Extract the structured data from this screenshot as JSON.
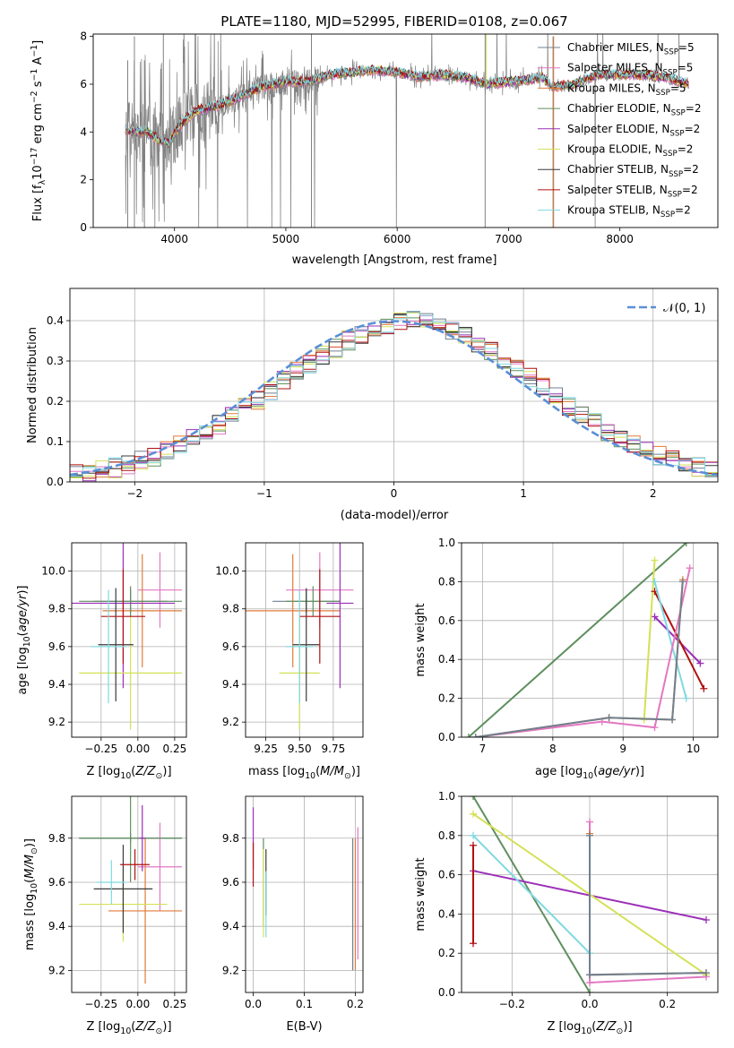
{
  "figure_title": "PLATE=1180, MJD=52995, FIBERID=0108, z=0.067",
  "colors": {
    "Chabrier MILES": "#708090",
    "Salpeter MILES": "#e377c2",
    "Kroupa MILES": "#e07b39",
    "Chabrier ELODIE": "#5f8f5f",
    "Salpeter ELODIE": "#9b30b8",
    "Kroupa ELODIE": "#d4e157",
    "Chabrier STELIB": "#3a3a3a",
    "Salpeter STELIB": "#b01010",
    "Kroupa STELIB": "#80d8e0",
    "data": "#808080",
    "normal": "#5a8fd6"
  },
  "chart_data": [
    {
      "id": "spectrum",
      "type": "line",
      "title": "PLATE=1180, MJD=52995, FIBERID=0108, z=0.067",
      "xlabel": "wavelength [Angstrom, rest frame]",
      "ylabel": "Flux [fλ10⁻¹⁷ erg cm⁻² s⁻¹ A⁻¹]",
      "xlim": [
        3270,
        8880
      ],
      "ylim": [
        0,
        8.1
      ],
      "xticks": [
        4000,
        5000,
        6000,
        7000,
        8000
      ],
      "yticks": [
        0,
        2,
        4,
        6,
        8
      ],
      "grid": false,
      "legend_position": "right",
      "legend": [
        "Chabrier MILES, N_SSP=5",
        "Salpeter MILES, N_SSP=5",
        "Kroupa MILES, N_SSP=5",
        "Chabrier ELODIE, N_SSP=2",
        "Salpeter ELODIE, N_SSP=2",
        "Kroupa ELODIE, N_SSP=2",
        "Chabrier STELIB, N_SSP=2",
        "Salpeter STELIB, N_SSP=2",
        "Kroupa STELIB, N_SSP=2"
      ],
      "legend_main": [
        "Chabrier MILES, N",
        "Salpeter MILES, N",
        "Kroupa MILES, N",
        "Chabrier ELODIE, N",
        "Salpeter ELODIE, N",
        "Kroupa ELODIE, N",
        "Chabrier STELIB, N",
        "Salpeter STELIB, N",
        "Kroupa STELIB, N"
      ],
      "legend_sub": "SSP",
      "legend_tail": [
        "=5",
        "=5",
        "=5",
        "=2",
        "=2",
        "=2",
        "=2",
        "=2",
        "=2"
      ],
      "model_continuum": {
        "x": [
          3560,
          3650,
          3750,
          3850,
          3950,
          4050,
          4200,
          4400,
          4600,
          4800,
          5000,
          5200,
          5400,
          5600,
          5800,
          6000,
          6200,
          6400,
          6600,
          6800,
          7000,
          7200,
          7300,
          7400,
          7600,
          7800,
          8000,
          8200,
          8400,
          8620
        ],
        "y": [
          4.1,
          4.0,
          4.0,
          3.7,
          3.5,
          4.3,
          4.9,
          5.1,
          5.5,
          5.9,
          6.1,
          6.1,
          6.4,
          6.5,
          6.6,
          6.5,
          6.3,
          6.4,
          6.3,
          6.0,
          6.1,
          6.2,
          6.3,
          5.9,
          6.0,
          6.4,
          6.4,
          6.4,
          6.3,
          6.0
        ]
      }
    },
    {
      "id": "residuals",
      "type": "histogram",
      "xlabel": "(data-model)/error",
      "ylabel": "Normed distribution",
      "xlim": [
        -2.5,
        2.5
      ],
      "ylim": [
        0,
        0.48
      ],
      "xticks": [
        -2,
        -1,
        0,
        1,
        2
      ],
      "yticks": [
        0.0,
        0.1,
        0.2,
        0.3,
        0.4
      ],
      "grid": true,
      "legend_position": "top-right",
      "legend": [
        "𝒩(0, 1)"
      ],
      "bin_edges": [
        -2.5,
        -2.4,
        -2.3,
        -2.2,
        -2.1,
        -2.0,
        -1.9,
        -1.8,
        -1.7,
        -1.6,
        -1.5,
        -1.4,
        -1.3,
        -1.2,
        -1.1,
        -1.0,
        -0.9,
        -0.8,
        -0.7,
        -0.6,
        -0.5,
        -0.4,
        -0.3,
        -0.2,
        -0.1,
        0.0,
        0.1,
        0.2,
        0.3,
        0.4,
        0.5,
        0.6,
        0.7,
        0.8,
        0.9,
        1.0,
        1.1,
        1.2,
        1.3,
        1.4,
        1.5,
        1.6,
        1.7,
        1.8,
        1.9,
        2.0,
        2.1,
        2.2,
        2.3,
        2.4,
        2.5
      ],
      "base_density": [
        0.018,
        0.022,
        0.028,
        0.035,
        0.043,
        0.053,
        0.064,
        0.077,
        0.091,
        0.107,
        0.124,
        0.143,
        0.163,
        0.183,
        0.205,
        0.227,
        0.249,
        0.272,
        0.293,
        0.314,
        0.333,
        0.351,
        0.367,
        0.38,
        0.391,
        0.398,
        0.399,
        0.396,
        0.389,
        0.378,
        0.363,
        0.345,
        0.326,
        0.305,
        0.283,
        0.26,
        0.236,
        0.213,
        0.19,
        0.168,
        0.147,
        0.127,
        0.108,
        0.092,
        0.077,
        0.064,
        0.053,
        0.043,
        0.035,
        0.028
      ],
      "normal_curve": {
        "mean": 0,
        "std": 1
      }
    },
    {
      "id": "age-vs-Z",
      "type": "scatter",
      "xlabel": "Z [log10(Z/Z⊙)]",
      "ylabel": "age [log10(age/yr)]",
      "xlim": [
        -0.45,
        0.33
      ],
      "ylim": [
        9.12,
        10.15
      ],
      "xticks": [
        -0.25,
        0.0,
        0.25
      ],
      "yticks": [
        9.2,
        9.4,
        9.6,
        9.8,
        10.0
      ],
      "grid": true,
      "points": [
        {
          "model": "Chabrier MILES",
          "x": -0.05,
          "xerr": 0.25,
          "y": 9.84,
          "yerr": 0.06
        },
        {
          "model": "Salpeter MILES",
          "x": 0.15,
          "xerr": 0.15,
          "y": 9.9,
          "yerr": 0.2
        },
        {
          "model": "Kroupa MILES",
          "x": 0.03,
          "xerr": 0.27,
          "y": 9.79,
          "yerr": 0.3
        },
        {
          "model": "Chabrier ELODIE",
          "x": -0.05,
          "xerr": 0.35,
          "y": 9.84,
          "yerr": 0.08
        },
        {
          "model": "Salpeter ELODIE",
          "x": -0.1,
          "xerr": 0.35,
          "y": 9.83,
          "yerr": 0.45
        },
        {
          "model": "Kroupa ELODIE",
          "x": -0.05,
          "xerr": 0.35,
          "y": 9.46,
          "yerr": 0.3
        },
        {
          "model": "Chabrier STELIB",
          "x": -0.15,
          "xerr": 0.12,
          "y": 9.61,
          "yerr": 0.3
        },
        {
          "model": "Salpeter STELIB",
          "x": -0.1,
          "xerr": 0.15,
          "y": 9.76,
          "yerr": 0.25
        },
        {
          "model": "Kroupa STELIB",
          "x": -0.2,
          "xerr": 0.12,
          "y": 9.6,
          "yerr": 0.3
        }
      ]
    },
    {
      "id": "age-vs-mass",
      "type": "scatter",
      "xlabel": "mass [log10(M/M⊙)]",
      "ylabel": "",
      "xlim": [
        9.1,
        9.97
      ],
      "ylim": [
        9.12,
        10.15
      ],
      "xticks": [
        9.25,
        9.5,
        9.75
      ],
      "yticks": [
        9.2,
        9.4,
        9.6,
        9.8,
        10.0
      ],
      "grid": true,
      "points": [
        {
          "model": "Chabrier MILES",
          "x": 9.55,
          "xerr": 0.25,
          "y": 9.84,
          "yerr": 0.06
        },
        {
          "model": "Salpeter MILES",
          "x": 9.65,
          "xerr": 0.25,
          "y": 9.9,
          "yerr": 0.2
        },
        {
          "model": "Kroupa MILES",
          "x": 9.45,
          "xerr": 0.35,
          "y": 9.79,
          "yerr": 0.3
        },
        {
          "model": "Chabrier ELODIE",
          "x": 9.6,
          "xerr": 0.2,
          "y": 9.84,
          "yerr": 0.08
        },
        {
          "model": "Salpeter ELODIE",
          "x": 9.8,
          "xerr": 0.1,
          "y": 9.83,
          "yerr": 0.45
        },
        {
          "model": "Kroupa ELODIE",
          "x": 9.5,
          "xerr": 0.15,
          "y": 9.46,
          "yerr": 0.3
        },
        {
          "model": "Chabrier STELIB",
          "x": 9.55,
          "xerr": 0.1,
          "y": 9.61,
          "yerr": 0.3
        },
        {
          "model": "Salpeter STELIB",
          "x": 9.65,
          "xerr": 0.15,
          "y": 9.76,
          "yerr": 0.25
        },
        {
          "model": "Kroupa STELIB",
          "x": 9.5,
          "xerr": 0.1,
          "y": 9.6,
          "yerr": 0.3
        }
      ]
    },
    {
      "id": "mass-weight-vs-age",
      "type": "line",
      "xlabel": "age [log10(age/yr)]",
      "ylabel": "mass weight",
      "xlim": [
        6.7,
        10.35
      ],
      "ylim": [
        0,
        1
      ],
      "xticks": [
        7,
        8,
        9,
        10
      ],
      "yticks": [
        0.0,
        0.2,
        0.4,
        0.6,
        0.8,
        1.0
      ],
      "grid": true,
      "series": [
        {
          "model": "Chabrier ELODIE",
          "x": [
            6.8,
            9.9
          ],
          "y": [
            0.0,
            1.0
          ]
        },
        {
          "model": "Salpeter ELODIE",
          "x": [
            9.45,
            10.1
          ],
          "y": [
            0.62,
            0.38
          ]
        },
        {
          "model": "Kroupa ELODIE",
          "x": [
            9.3,
            9.45
          ],
          "y": [
            0.09,
            0.91
          ]
        },
        {
          "model": "Salpeter STELIB",
          "x": [
            9.45,
            10.15
          ],
          "y": [
            0.75,
            0.25
          ]
        },
        {
          "model": "Kroupa STELIB",
          "x": [
            9.45,
            9.9
          ],
          "y": [
            0.8,
            0.2
          ]
        },
        {
          "model": "Salpeter MILES",
          "x": [
            6.9,
            8.7,
            9.45,
            9.95
          ],
          "y": [
            0.0,
            0.08,
            0.05,
            0.87
          ]
        },
        {
          "model": "Kroupa MILES",
          "x": [
            6.9,
            8.8,
            9.7,
            9.85
          ],
          "y": [
            0.0,
            0.1,
            0.09,
            0.81
          ]
        },
        {
          "model": "Chabrier MILES",
          "x": [
            6.9,
            8.8,
            9.7,
            9.85
          ],
          "y": [
            0.0,
            0.1,
            0.09,
            0.8
          ]
        }
      ]
    },
    {
      "id": "mass-vs-Z",
      "type": "scatter",
      "xlabel": "Z [log10(Z/Z⊙)]",
      "ylabel": "mass [log10(M/M⊙)]",
      "xlim": [
        -0.45,
        0.33
      ],
      "ylim": [
        9.1,
        9.99
      ],
      "xticks": [
        -0.25,
        0.0,
        0.25
      ],
      "yticks": [
        9.2,
        9.4,
        9.6,
        9.8
      ],
      "grid": true,
      "points": [
        {
          "model": "Chabrier MILES",
          "x": -0.05,
          "xerr": 0.35,
          "y": 9.8,
          "yerr": 0.02
        },
        {
          "model": "Salpeter MILES",
          "x": 0.15,
          "xerr": 0.15,
          "y": 9.67,
          "yerr": 0.2
        },
        {
          "model": "Kroupa MILES",
          "x": 0.05,
          "xerr": 0.25,
          "y": 9.47,
          "yerr": 0.33
        },
        {
          "model": "Chabrier ELODIE",
          "x": -0.05,
          "xerr": 0.35,
          "y": 9.8,
          "yerr": 0.2
        },
        {
          "model": "Salpeter ELODIE",
          "x": 0.03,
          "xerr": 0.02,
          "y": 9.8,
          "yerr": 0.15
        },
        {
          "model": "Kroupa ELODIE",
          "x": -0.1,
          "xerr": 0.3,
          "y": 9.5,
          "yerr": 0.17
        },
        {
          "model": "Chabrier STELIB",
          "x": -0.1,
          "xerr": 0.2,
          "y": 9.57,
          "yerr": 0.2
        },
        {
          "model": "Salpeter STELIB",
          "x": -0.02,
          "xerr": 0.1,
          "y": 9.68,
          "yerr": 0.07
        },
        {
          "model": "Kroupa STELIB",
          "x": -0.18,
          "xerr": 0.1,
          "y": 9.6,
          "yerr": 0.1
        }
      ]
    },
    {
      "id": "mass-vs-ebv",
      "type": "scatter",
      "xlabel": "E(B-V)",
      "ylabel": "",
      "xlim": [
        -0.015,
        0.215
      ],
      "ylim": [
        9.1,
        9.99
      ],
      "xticks": [
        0.0,
        0.1,
        0.2
      ],
      "yticks": [
        9.2,
        9.4,
        9.6,
        9.8
      ],
      "grid": true,
      "points": [
        {
          "model": "Chabrier MILES",
          "x": 0.195,
          "xerr": 0.0,
          "y": 9.5,
          "yerr": 0.3
        },
        {
          "model": "Salpeter MILES",
          "x": 0.205,
          "xerr": 0.0,
          "y": 9.55,
          "yerr": 0.3
        },
        {
          "model": "Kroupa MILES",
          "x": 0.2,
          "xerr": 0.0,
          "y": 9.5,
          "yerr": 0.3
        },
        {
          "model": "Chabrier ELODIE",
          "x": 0.02,
          "xerr": 0.0,
          "y": 9.6,
          "yerr": 0.2
        },
        {
          "model": "Salpeter ELODIE",
          "x": 0.0,
          "xerr": 0.0,
          "y": 9.8,
          "yerr": 0.14
        },
        {
          "model": "Kroupa ELODIE",
          "x": 0.02,
          "xerr": 0.0,
          "y": 9.55,
          "yerr": 0.2
        },
        {
          "model": "Chabrier STELIB",
          "x": 0.025,
          "xerr": 0.0,
          "y": 9.6,
          "yerr": 0.15
        },
        {
          "model": "Salpeter STELIB",
          "x": 0.0,
          "xerr": 0.0,
          "y": 9.68,
          "yerr": 0.1
        },
        {
          "model": "Kroupa STELIB",
          "x": 0.025,
          "xerr": 0.0,
          "y": 9.5,
          "yerr": 0.15
        }
      ]
    },
    {
      "id": "mass-weight-vs-Z",
      "type": "line",
      "xlabel": "Z [log10(Z/Z⊙)]",
      "ylabel": "mass weight",
      "xlim": [
        -0.33,
        0.33
      ],
      "ylim": [
        0,
        1
      ],
      "xticks": [
        -0.2,
        0.0,
        0.2
      ],
      "yticks": [
        0.0,
        0.2,
        0.4,
        0.6,
        0.8,
        1.0
      ],
      "grid": true,
      "series": [
        {
          "model": "Chabrier ELODIE",
          "x": [
            -0.3,
            0.0
          ],
          "y": [
            1.0,
            0.0
          ]
        },
        {
          "model": "Salpeter ELODIE",
          "x": [
            -0.3,
            0.3
          ],
          "y": [
            0.62,
            0.37
          ]
        },
        {
          "model": "Kroupa ELODIE",
          "x": [
            -0.3,
            0.3
          ],
          "y": [
            0.91,
            0.09
          ]
        },
        {
          "model": "Salpeter STELIB",
          "x": [
            -0.3,
            -0.3
          ],
          "y": [
            0.25,
            0.75
          ]
        },
        {
          "model": "Kroupa STELIB",
          "x": [
            -0.3,
            0.0
          ],
          "y": [
            0.8,
            0.2
          ]
        },
        {
          "model": "Salpeter MILES",
          "x": [
            0.0,
            0.0,
            0.3
          ],
          "y": [
            0.87,
            0.05,
            0.08
          ]
        },
        {
          "model": "Kroupa MILES",
          "x": [
            0.0,
            0.0,
            0.3
          ],
          "y": [
            0.81,
            0.09,
            0.1
          ]
        },
        {
          "model": "Chabrier MILES",
          "x": [
            0.0,
            0.0,
            0.3
          ],
          "y": [
            0.8,
            0.09,
            0.1
          ]
        }
      ]
    }
  ]
}
